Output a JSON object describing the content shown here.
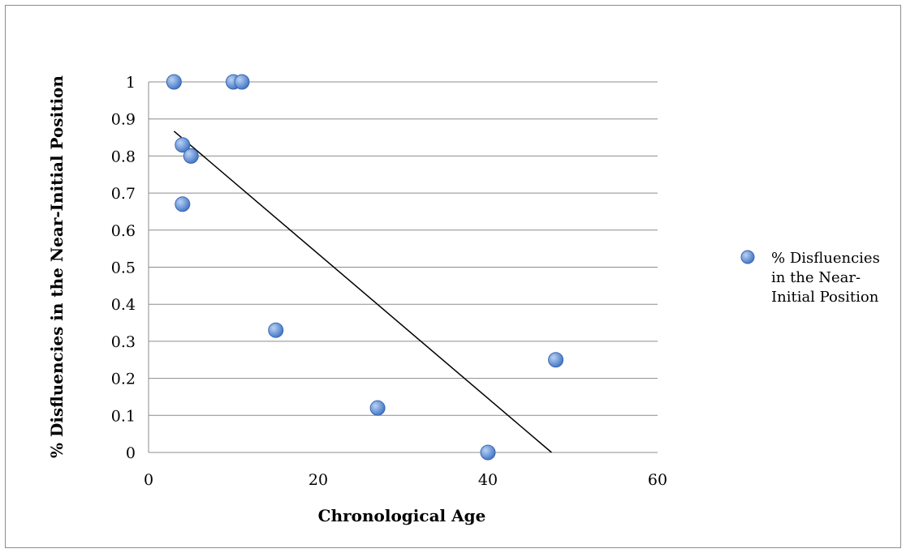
{
  "chart_data": {
    "type": "scatter",
    "xlabel": "Chronological Age",
    "ylabel": "% Disfluencies in the Near-Initial Position",
    "xlim": [
      0,
      60
    ],
    "ylim": [
      0,
      1
    ],
    "x_ticks": [
      0,
      20,
      40,
      60
    ],
    "y_ticks": [
      0,
      0.1,
      0.2,
      0.3,
      0.4,
      0.5,
      0.6,
      0.7,
      0.8,
      0.9,
      1
    ],
    "grid": "horizontal",
    "legend_position": "right",
    "series": [
      {
        "name": "% Disfluencies in the Near-Initial Position",
        "legend_lines": [
          "% Disfluencies",
          "in the Near-",
          "Initial Position"
        ],
        "points": [
          {
            "x": 3,
            "y": 1
          },
          {
            "x": 10,
            "y": 1
          },
          {
            "x": 11,
            "y": 1
          },
          {
            "x": 4,
            "y": 0.83
          },
          {
            "x": 5,
            "y": 0.8
          },
          {
            "x": 4,
            "y": 0.67
          },
          {
            "x": 15,
            "y": 0.33
          },
          {
            "x": 27,
            "y": 0.12
          },
          {
            "x": 40,
            "y": 0
          },
          {
            "x": 48,
            "y": 0.25
          }
        ],
        "color": "#5b8fd6"
      }
    ],
    "trendline": {
      "type": "linear",
      "start": {
        "x": 3,
        "y": 0.867
      },
      "end": {
        "x": 47.5,
        "y": 0
      },
      "color": "#000000"
    }
  }
}
